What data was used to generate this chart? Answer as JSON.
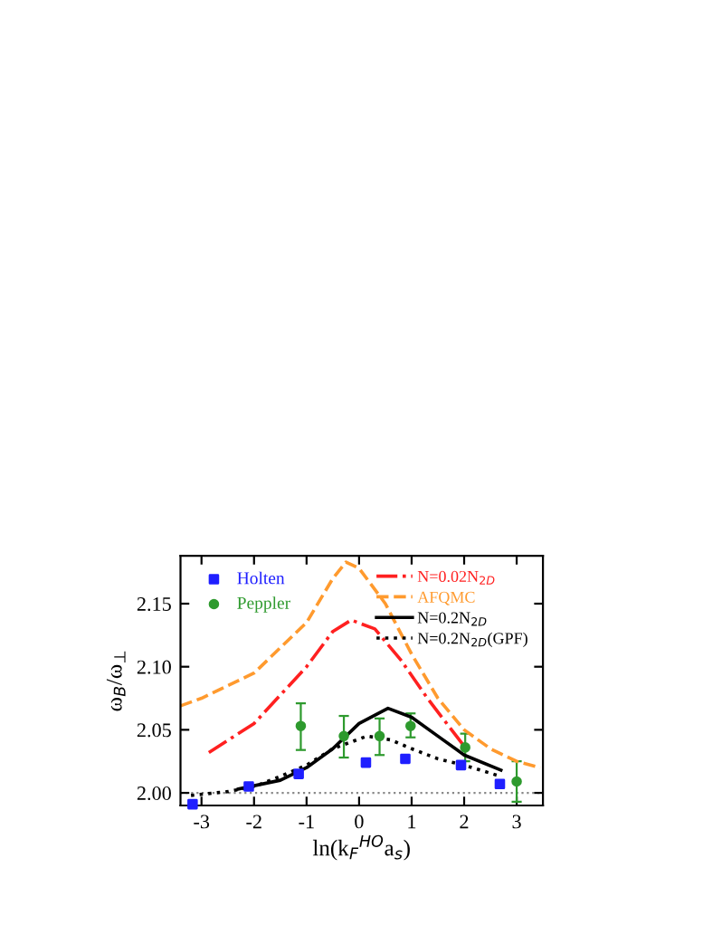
{
  "chart_data": {
    "type": "line",
    "xlabel": "ln(k$_{F}$$^{HO}$a$_{s}$)",
    "ylabel": "ω$_{B}$/ω$_{⊥}$",
    "xlim": [
      -3.4,
      3.5
    ],
    "ylim": [
      1.99,
      2.188
    ],
    "xticks": [
      -3,
      -2,
      -1,
      0,
      1,
      2,
      3
    ],
    "yticks": [
      {
        "value": 2.0,
        "label": "2.00"
      },
      {
        "value": 2.05,
        "label": "2.05"
      },
      {
        "value": 2.1,
        "label": "2.10"
      },
      {
        "value": 2.15,
        "label": "2.15"
      }
    ],
    "grid": false,
    "legend": "top",
    "ref_lines": [
      {
        "axis": "y",
        "value": 2.0,
        "color": "#888888",
        "line_style": "dotted"
      }
    ],
    "series": [
      {
        "name": "Holten",
        "type": "scatter",
        "marker": "square",
        "color": "#1f1fff",
        "x": [
          -3.17,
          -2.1,
          -1.15,
          0.13,
          0.88,
          1.94,
          2.68
        ],
        "values": [
          1.991,
          2.005,
          2.015,
          2.024,
          2.027,
          2.022,
          2.007
        ]
      },
      {
        "name": "Peppler",
        "type": "scatter",
        "marker": "circle",
        "color": "#2e9a2e",
        "x": [
          -1.11,
          -0.29,
          0.39,
          0.98,
          2.02,
          3.0
        ],
        "values": [
          2.053,
          2.045,
          2.045,
          2.053,
          2.036,
          2.009
        ],
        "errors": [
          [
            2.034,
            2.071
          ],
          [
            2.028,
            2.061
          ],
          [
            2.03,
            2.059
          ],
          [
            2.044,
            2.063
          ],
          [
            2.025,
            2.047
          ],
          [
            1.993,
            2.025
          ]
        ]
      },
      {
        "name": "N=0.02N$_{2D}$",
        "line_style": "dashdot",
        "color": "#ff2020",
        "x": [
          -2.86,
          -2.0,
          -1.0,
          -0.5,
          -0.15,
          0.3,
          0.8,
          1.3,
          2.0
        ],
        "values": [
          2.032,
          2.055,
          2.1,
          2.128,
          2.137,
          2.13,
          2.105,
          2.075,
          2.037
        ]
      },
      {
        "name": "AFQMC",
        "line_style": "dashed",
        "color": "#ff9a2e",
        "x": [
          -3.4,
          -3.0,
          -2.0,
          -1.0,
          -0.5,
          -0.25,
          0.0,
          0.5,
          1.0,
          1.5,
          2.0,
          2.5,
          3.0,
          3.45
        ],
        "values": [
          2.069,
          2.075,
          2.095,
          2.135,
          2.17,
          2.183,
          2.178,
          2.15,
          2.11,
          2.075,
          2.05,
          2.035,
          2.025,
          2.02
        ]
      },
      {
        "name": "N=0.2N$_{2D}$",
        "line_style": "solid",
        "color": "#000000",
        "x": [
          -2.3,
          -1.5,
          -1.0,
          -0.5,
          0.0,
          0.55,
          1.0,
          1.5,
          2.0,
          2.7
        ],
        "values": [
          2.003,
          2.01,
          2.02,
          2.035,
          2.055,
          2.067,
          2.06,
          2.045,
          2.03,
          2.018
        ]
      },
      {
        "name": "N=0.2N$_{2D}$(GPF)",
        "line_style": "dotted",
        "color": "#000000",
        "x": [
          -3.2,
          -2.5,
          -2.0,
          -1.5,
          -1.0,
          -0.5,
          0.15,
          0.6,
          1.0,
          1.5,
          2.0,
          2.7
        ],
        "values": [
          1.998,
          2.001,
          2.005,
          2.013,
          2.022,
          2.035,
          2.045,
          2.042,
          2.035,
          2.027,
          2.022,
          2.013
        ]
      }
    ]
  }
}
